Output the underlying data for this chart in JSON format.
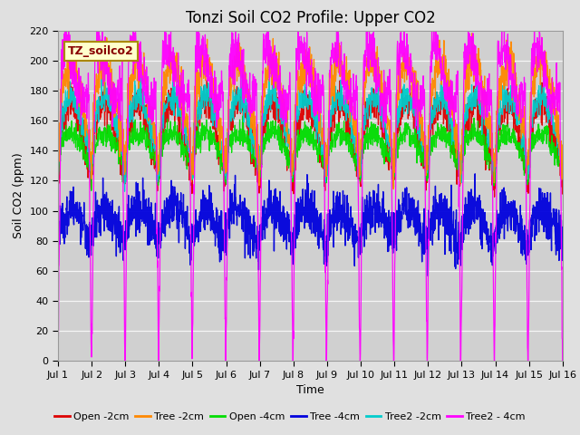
{
  "title": "Tonzi Soil CO2 Profile: Upper CO2",
  "xlabel": "Time",
  "ylabel": "Soil CO2 (ppm)",
  "ylim": [
    0,
    220
  ],
  "yticks": [
    0,
    20,
    40,
    60,
    80,
    100,
    120,
    140,
    160,
    180,
    200,
    220
  ],
  "xtick_labels": [
    "Jul 1",
    "Jul 2",
    "Jul 3",
    "Jul 4",
    "Jul 5",
    "Jul 6",
    "Jul 7",
    "Jul 8",
    "Jul 9",
    "Jul 10",
    "Jul 11",
    "Jul 12",
    "Jul 13",
    "Jul 14",
    "Jul 15",
    "Jul 16"
  ],
  "legend_label": "TZ_soilco2",
  "series": [
    {
      "name": "Open -2cm",
      "color": "#dd0000",
      "base": 150,
      "amp": 22,
      "trough": 120,
      "noise": 6
    },
    {
      "name": "Tree -2cm",
      "color": "#ff8800",
      "base": 170,
      "amp": 28,
      "trough": 130,
      "noise": 7
    },
    {
      "name": "Open -4cm",
      "color": "#00dd00",
      "base": 142,
      "amp": 10,
      "trough": 122,
      "noise": 4
    },
    {
      "name": "Tree -4cm",
      "color": "#0000dd",
      "base": 90,
      "amp": 12,
      "trough": 80,
      "noise": 8
    },
    {
      "name": "Tree2 -2cm",
      "color": "#00cccc",
      "base": 158,
      "amp": 18,
      "trough": 125,
      "noise": 5
    },
    {
      "name": "Tree2 - 4cm",
      "color": "#ff00ff",
      "base": 190,
      "amp": 18,
      "trough": 0,
      "noise": 8
    }
  ],
  "n_points": 2000,
  "days": 15,
  "background_color": "#e0e0e0",
  "plot_background": "#d0d0d0",
  "legend_box_color": "#ffffcc",
  "legend_box_edge": "#aa8800",
  "legend_text_color": "#880000",
  "title_fontsize": 12,
  "axis_label_fontsize": 9,
  "tick_fontsize": 8,
  "legend_fontsize": 8
}
